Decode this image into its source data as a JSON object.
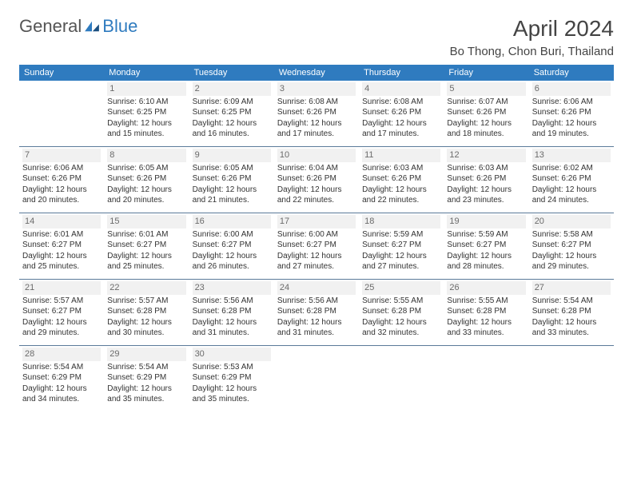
{
  "brand": {
    "part1": "General",
    "part2": "Blue"
  },
  "title": "April 2024",
  "location": "Bo Thong, Chon Buri, Thailand",
  "colors": {
    "header_bg": "#2f7bbf",
    "header_text": "#ffffff",
    "divider": "#5a7a99",
    "day_num_bg": "#f1f1f1",
    "text": "#333333"
  },
  "day_names": [
    "Sunday",
    "Monday",
    "Tuesday",
    "Wednesday",
    "Thursday",
    "Friday",
    "Saturday"
  ],
  "weeks": [
    [
      {
        "num": "",
        "sunrise": "",
        "sunset": "",
        "daylight": ""
      },
      {
        "num": "1",
        "sunrise": "Sunrise: 6:10 AM",
        "sunset": "Sunset: 6:25 PM",
        "daylight": "Daylight: 12 hours and 15 minutes."
      },
      {
        "num": "2",
        "sunrise": "Sunrise: 6:09 AM",
        "sunset": "Sunset: 6:25 PM",
        "daylight": "Daylight: 12 hours and 16 minutes."
      },
      {
        "num": "3",
        "sunrise": "Sunrise: 6:08 AM",
        "sunset": "Sunset: 6:26 PM",
        "daylight": "Daylight: 12 hours and 17 minutes."
      },
      {
        "num": "4",
        "sunrise": "Sunrise: 6:08 AM",
        "sunset": "Sunset: 6:26 PM",
        "daylight": "Daylight: 12 hours and 17 minutes."
      },
      {
        "num": "5",
        "sunrise": "Sunrise: 6:07 AM",
        "sunset": "Sunset: 6:26 PM",
        "daylight": "Daylight: 12 hours and 18 minutes."
      },
      {
        "num": "6",
        "sunrise": "Sunrise: 6:06 AM",
        "sunset": "Sunset: 6:26 PM",
        "daylight": "Daylight: 12 hours and 19 minutes."
      }
    ],
    [
      {
        "num": "7",
        "sunrise": "Sunrise: 6:06 AM",
        "sunset": "Sunset: 6:26 PM",
        "daylight": "Daylight: 12 hours and 20 minutes."
      },
      {
        "num": "8",
        "sunrise": "Sunrise: 6:05 AM",
        "sunset": "Sunset: 6:26 PM",
        "daylight": "Daylight: 12 hours and 20 minutes."
      },
      {
        "num": "9",
        "sunrise": "Sunrise: 6:05 AM",
        "sunset": "Sunset: 6:26 PM",
        "daylight": "Daylight: 12 hours and 21 minutes."
      },
      {
        "num": "10",
        "sunrise": "Sunrise: 6:04 AM",
        "sunset": "Sunset: 6:26 PM",
        "daylight": "Daylight: 12 hours and 22 minutes."
      },
      {
        "num": "11",
        "sunrise": "Sunrise: 6:03 AM",
        "sunset": "Sunset: 6:26 PM",
        "daylight": "Daylight: 12 hours and 22 minutes."
      },
      {
        "num": "12",
        "sunrise": "Sunrise: 6:03 AM",
        "sunset": "Sunset: 6:26 PM",
        "daylight": "Daylight: 12 hours and 23 minutes."
      },
      {
        "num": "13",
        "sunrise": "Sunrise: 6:02 AM",
        "sunset": "Sunset: 6:26 PM",
        "daylight": "Daylight: 12 hours and 24 minutes."
      }
    ],
    [
      {
        "num": "14",
        "sunrise": "Sunrise: 6:01 AM",
        "sunset": "Sunset: 6:27 PM",
        "daylight": "Daylight: 12 hours and 25 minutes."
      },
      {
        "num": "15",
        "sunrise": "Sunrise: 6:01 AM",
        "sunset": "Sunset: 6:27 PM",
        "daylight": "Daylight: 12 hours and 25 minutes."
      },
      {
        "num": "16",
        "sunrise": "Sunrise: 6:00 AM",
        "sunset": "Sunset: 6:27 PM",
        "daylight": "Daylight: 12 hours and 26 minutes."
      },
      {
        "num": "17",
        "sunrise": "Sunrise: 6:00 AM",
        "sunset": "Sunset: 6:27 PM",
        "daylight": "Daylight: 12 hours and 27 minutes."
      },
      {
        "num": "18",
        "sunrise": "Sunrise: 5:59 AM",
        "sunset": "Sunset: 6:27 PM",
        "daylight": "Daylight: 12 hours and 27 minutes."
      },
      {
        "num": "19",
        "sunrise": "Sunrise: 5:59 AM",
        "sunset": "Sunset: 6:27 PM",
        "daylight": "Daylight: 12 hours and 28 minutes."
      },
      {
        "num": "20",
        "sunrise": "Sunrise: 5:58 AM",
        "sunset": "Sunset: 6:27 PM",
        "daylight": "Daylight: 12 hours and 29 minutes."
      }
    ],
    [
      {
        "num": "21",
        "sunrise": "Sunrise: 5:57 AM",
        "sunset": "Sunset: 6:27 PM",
        "daylight": "Daylight: 12 hours and 29 minutes."
      },
      {
        "num": "22",
        "sunrise": "Sunrise: 5:57 AM",
        "sunset": "Sunset: 6:28 PM",
        "daylight": "Daylight: 12 hours and 30 minutes."
      },
      {
        "num": "23",
        "sunrise": "Sunrise: 5:56 AM",
        "sunset": "Sunset: 6:28 PM",
        "daylight": "Daylight: 12 hours and 31 minutes."
      },
      {
        "num": "24",
        "sunrise": "Sunrise: 5:56 AM",
        "sunset": "Sunset: 6:28 PM",
        "daylight": "Daylight: 12 hours and 31 minutes."
      },
      {
        "num": "25",
        "sunrise": "Sunrise: 5:55 AM",
        "sunset": "Sunset: 6:28 PM",
        "daylight": "Daylight: 12 hours and 32 minutes."
      },
      {
        "num": "26",
        "sunrise": "Sunrise: 5:55 AM",
        "sunset": "Sunset: 6:28 PM",
        "daylight": "Daylight: 12 hours and 33 minutes."
      },
      {
        "num": "27",
        "sunrise": "Sunrise: 5:54 AM",
        "sunset": "Sunset: 6:28 PM",
        "daylight": "Daylight: 12 hours and 33 minutes."
      }
    ],
    [
      {
        "num": "28",
        "sunrise": "Sunrise: 5:54 AM",
        "sunset": "Sunset: 6:29 PM",
        "daylight": "Daylight: 12 hours and 34 minutes."
      },
      {
        "num": "29",
        "sunrise": "Sunrise: 5:54 AM",
        "sunset": "Sunset: 6:29 PM",
        "daylight": "Daylight: 12 hours and 35 minutes."
      },
      {
        "num": "30",
        "sunrise": "Sunrise: 5:53 AM",
        "sunset": "Sunset: 6:29 PM",
        "daylight": "Daylight: 12 hours and 35 minutes."
      },
      {
        "num": "",
        "sunrise": "",
        "sunset": "",
        "daylight": ""
      },
      {
        "num": "",
        "sunrise": "",
        "sunset": "",
        "daylight": ""
      },
      {
        "num": "",
        "sunrise": "",
        "sunset": "",
        "daylight": ""
      },
      {
        "num": "",
        "sunrise": "",
        "sunset": "",
        "daylight": ""
      }
    ]
  ]
}
